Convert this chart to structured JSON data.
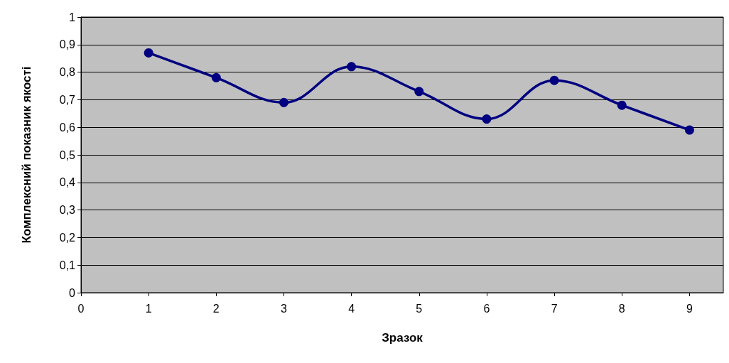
{
  "chart_data": {
    "type": "line",
    "xlabel": "Зразок",
    "ylabel": "Комплексний показник якості",
    "x": [
      1,
      2,
      3,
      4,
      5,
      6,
      7,
      8,
      9
    ],
    "series": [
      {
        "color": "#000080",
        "values": [
          0.87,
          0.78,
          0.69,
          0.82,
          0.73,
          0.63,
          0.77,
          0.68,
          0.59
        ]
      }
    ],
    "xlim": [
      0,
      9.5
    ],
    "xticks": [
      0,
      1,
      2,
      3,
      4,
      5,
      6,
      7,
      8,
      9
    ],
    "ylim": [
      0,
      1
    ],
    "yticks": [
      {
        "value": 0,
        "label": "0"
      },
      {
        "value": 0.1,
        "label": "0,1"
      },
      {
        "value": 0.2,
        "label": "0,2"
      },
      {
        "value": 0.3,
        "label": "0,3"
      },
      {
        "value": 0.4,
        "label": "0,4"
      },
      {
        "value": 0.5,
        "label": "0,5"
      },
      {
        "value": 0.6,
        "label": "0,6"
      },
      {
        "value": 0.7,
        "label": "0,7"
      },
      {
        "value": 0.8,
        "label": "0,8"
      },
      {
        "value": 0.9,
        "label": "0,9"
      },
      {
        "value": 1,
        "label": "1"
      }
    ],
    "grid": "y",
    "marker": "circle",
    "line_style": "solid"
  }
}
